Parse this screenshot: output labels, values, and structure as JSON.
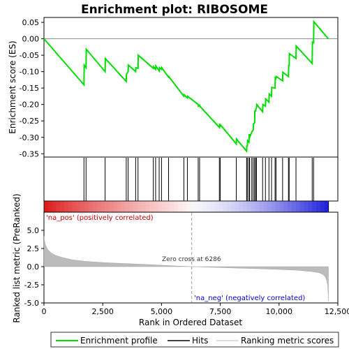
{
  "chart_data": {
    "type": "line",
    "title": "Enrichment plot: RIBOSOME",
    "xlabel": "Rank in Ordered Dataset",
    "xlim": [
      0,
      12500
    ],
    "x_ticks": [
      0,
      2500,
      5000,
      7500,
      10000,
      12500
    ],
    "x_tick_labels": [
      "0",
      "2,500",
      "5,000",
      "7,500",
      "10,000",
      "12,500"
    ],
    "n_genes": 12100,
    "es_panel": {
      "ylabel": "Enrichment score (ES)",
      "ylim": [
        -0.36,
        0.065
      ],
      "y_ticks": [
        0.05,
        0.0,
        -0.05,
        -0.1,
        -0.15,
        -0.2,
        -0.25,
        -0.3,
        -0.35
      ],
      "y_tick_labels": [
        "0.05",
        "0.00",
        "-0.05",
        "-0.10",
        "-0.15",
        "-0.20",
        "-0.25",
        "-0.30",
        "-0.35"
      ],
      "series": [
        {
          "name": "Enrichment profile",
          "color": "#00dd00",
          "x": [
            0,
            1700,
            1710,
            1790,
            1800,
            2600,
            2610,
            3500,
            3510,
            3580,
            3590,
            3900,
            3910,
            4000,
            4010,
            4650,
            4660,
            4750,
            4760,
            4900,
            4910,
            5000,
            5010,
            5300,
            5310,
            5950,
            5960,
            6100,
            6110,
            6560,
            6570,
            6620,
            6630,
            7460,
            7470,
            7500,
            7510,
            8180,
            8190,
            8620,
            8630,
            8650,
            8660,
            8720,
            8730,
            8750,
            8760,
            8840,
            8850,
            8900,
            8910,
            8960,
            8970,
            9000,
            9010,
            9040,
            9050,
            9300,
            9310,
            9420,
            9430,
            9570,
            9580,
            9680,
            9690,
            9830,
            9840,
            9870,
            9880,
            10150,
            10160,
            10400,
            10410,
            10430,
            10440,
            10720,
            10730,
            11410,
            11420,
            11470,
            11480,
            12100
          ],
          "y": [
            0.0,
            -0.14,
            -0.08,
            -0.088,
            -0.032,
            -0.1,
            -0.06,
            -0.13,
            -0.108,
            -0.1,
            -0.08,
            -0.1,
            -0.088,
            -0.09,
            -0.05,
            -0.09,
            -0.085,
            -0.093,
            -0.083,
            -0.098,
            -0.088,
            -0.093,
            -0.088,
            -0.117,
            -0.115,
            -0.175,
            -0.17,
            -0.18,
            -0.175,
            -0.2,
            -0.205,
            -0.202,
            -0.205,
            -0.27,
            -0.262,
            -0.265,
            -0.262,
            -0.32,
            -0.305,
            -0.342,
            -0.325,
            -0.328,
            -0.31,
            -0.315,
            -0.29,
            -0.295,
            -0.298,
            -0.285,
            -0.282,
            -0.278,
            -0.26,
            -0.255,
            -0.22,
            -0.22,
            -0.215,
            -0.21,
            -0.2,
            -0.222,
            -0.2,
            -0.205,
            -0.183,
            -0.193,
            -0.168,
            -0.175,
            -0.148,
            -0.15,
            -0.118,
            -0.12,
            -0.115,
            -0.128,
            -0.102,
            -0.115,
            -0.08,
            -0.083,
            -0.045,
            -0.06,
            -0.022,
            -0.075,
            -0.01,
            -0.012,
            0.052,
            0.0
          ]
        }
      ]
    },
    "hits": {
      "name": "Hits",
      "color": "#000000",
      "positions": [
        1700,
        1790,
        2600,
        3500,
        3580,
        3900,
        4000,
        4650,
        4750,
        4900,
        5000,
        5300,
        5950,
        6100,
        6560,
        6620,
        7460,
        7500,
        8180,
        8620,
        8650,
        8720,
        8750,
        8840,
        8900,
        8960,
        9000,
        9040,
        9300,
        9420,
        9570,
        9680,
        9830,
        9870,
        10150,
        10400,
        10430,
        10720,
        11410,
        11470
      ]
    },
    "ranked_metric_panel": {
      "ylabel": "Ranked list metric (PreRanked)",
      "ylim": [
        -5.0,
        7.5
      ],
      "y_ticks": [
        5.0,
        2.5,
        0.0,
        -2.5,
        -5.0
      ],
      "y_tick_labels": [
        "5.0",
        "2.5",
        "0.0",
        "-2.5",
        "-5.0"
      ],
      "series_name": "Ranking metric scores",
      "fill_color": "#bbbbbb",
      "profile_rank": [
        0,
        20,
        60,
        150,
        300,
        500,
        800,
        1200,
        1800,
        2600,
        3500,
        4500,
        5500,
        6286,
        7000,
        8000,
        9000,
        10000,
        10800,
        11400,
        11700,
        11850,
        11950,
        12030,
        12070,
        12100
      ],
      "profile_value": [
        4.2,
        3.6,
        3.0,
        2.4,
        1.9,
        1.55,
        1.25,
        0.95,
        0.72,
        0.55,
        0.42,
        0.28,
        0.12,
        0.0,
        -0.08,
        -0.18,
        -0.28,
        -0.38,
        -0.5,
        -0.68,
        -0.85,
        -1.05,
        -1.35,
        -1.9,
        -2.6,
        -4.7
      ],
      "zero_cross_label": "Zero cross at 6286",
      "zero_cross_rank": 6286,
      "pos_label": "'na_pos' (positively correlated)",
      "neg_label": "'na_neg' (negatively correlated)",
      "pos_color": "#cc0000",
      "neg_color": "#0000cc"
    },
    "legend": [
      {
        "name": "Enrichment profile",
        "color": "#00dd00"
      },
      {
        "name": "Hits",
        "color": "#000000"
      },
      {
        "name": "Ranking metric scores",
        "color": "#bbbbbb"
      }
    ]
  }
}
